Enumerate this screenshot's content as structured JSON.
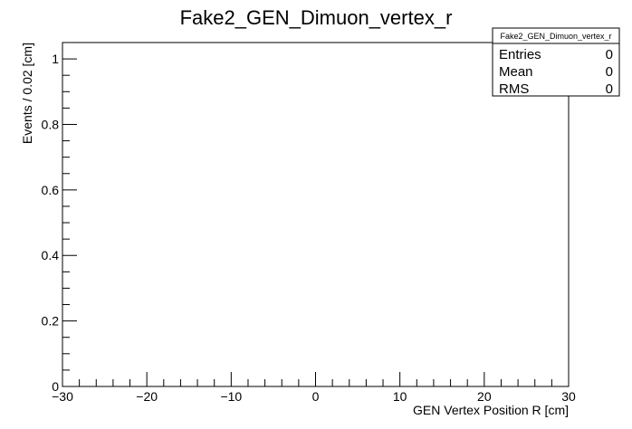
{
  "chart_data": {
    "type": "bar",
    "title": "Fake2_GEN_Dimuon_vertex_r",
    "xlabel": "GEN Vertex Position R [cm]",
    "ylabel": "Events / 0.02 [cm]",
    "xlim": [
      -30,
      30
    ],
    "ylim": [
      0,
      1.05
    ],
    "xticks": [
      -30,
      -20,
      -10,
      0,
      10,
      20,
      30
    ],
    "xtick_labels": [
      "−30",
      "−20",
      "−10",
      "0",
      "10",
      "20",
      "30"
    ],
    "yticks": [
      0,
      0.2,
      0.4,
      0.6,
      0.8,
      1
    ],
    "ytick_labels": [
      "0",
      "0.2",
      "0.4",
      "0.6",
      "0.8",
      "1"
    ],
    "x_minor_step": 2,
    "y_minor_step": 0.05,
    "grid": false,
    "series": [],
    "stats_box": {
      "title": "Fake2_GEN_Dimuon_vertex_r",
      "rows": [
        {
          "label": "Entries",
          "value": "0"
        },
        {
          "label": "Mean",
          "value": "0"
        },
        {
          "label": "RMS",
          "value": "0"
        }
      ]
    }
  }
}
